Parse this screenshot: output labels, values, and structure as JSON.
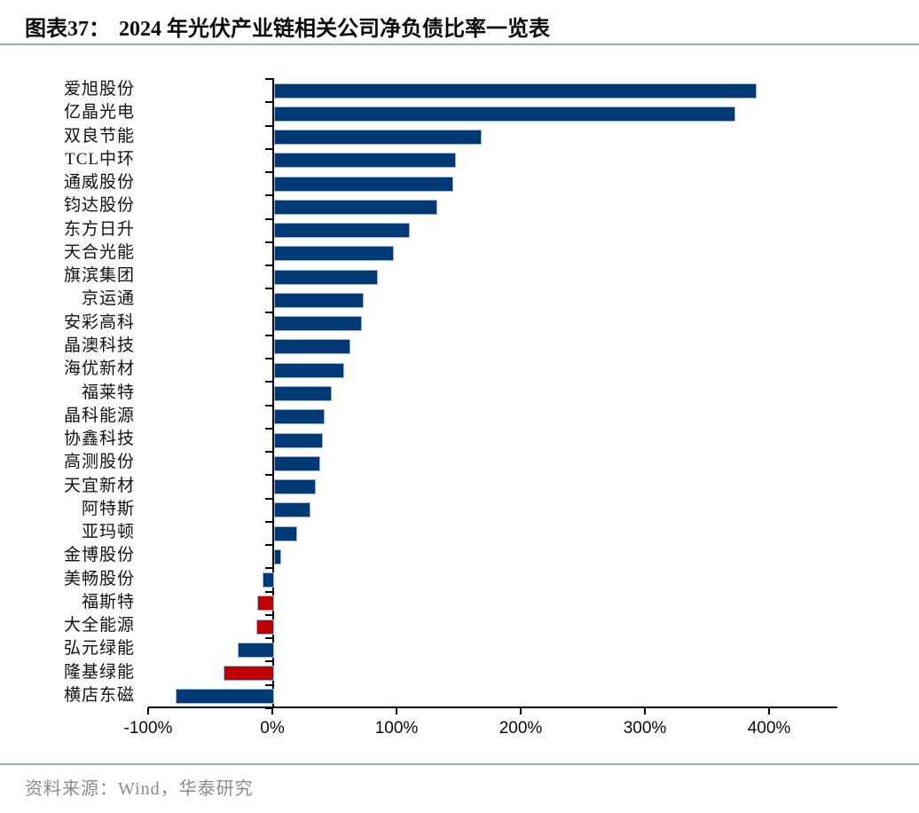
{
  "header": {
    "fig_label": "图表37：",
    "title": "2024 年光伏产业链相关公司净负债比率一览表"
  },
  "source": {
    "text": "资料来源：Wind，华泰研究"
  },
  "colors": {
    "bar_blue": "#003a76",
    "bar_red": "#c00000",
    "bar_border": "#9fb6d2",
    "divider": "#93acc5",
    "axis": "#000000",
    "source_text": "#8a8a8a"
  },
  "chart_data": {
    "type": "bar",
    "orientation": "horizontal",
    "title": "2024 年光伏产业链相关公司净负债比率一览表",
    "value_unit": "%",
    "xlim": [
      -100,
      455
    ],
    "x_tick_values": [
      -100,
      0,
      100,
      200,
      300,
      400
    ],
    "x_tick_labels": [
      "-100%",
      "0%",
      "100%",
      "200%",
      "300%",
      "400%"
    ],
    "grid": false,
    "legend": "none",
    "categories": [
      "爱旭股份",
      "亿晶光电",
      "双良节能",
      "TCL中环",
      "通威股份",
      "钧达股份",
      "东方日升",
      "天合光能",
      "旗滨集团",
      "京运通",
      "安彩高科",
      "晶澳科技",
      "海优新材",
      "福莱特",
      "晶科能源",
      "协鑫科技",
      "高测股份",
      "天宜新材",
      "阿特斯",
      "亚玛顿",
      "金博股份",
      "美畅股份",
      "福斯特",
      "大全能源",
      "弘元绿能",
      "隆基绿能",
      "横店东磁"
    ],
    "values": [
      387,
      370,
      166,
      145,
      143,
      130,
      108,
      95,
      82,
      71,
      69,
      60,
      55,
      45,
      39,
      38,
      36,
      32,
      28,
      17,
      4,
      -8,
      -12,
      -13,
      -28,
      -39,
      -78
    ],
    "bar_colors": [
      "#003a76",
      "#003a76",
      "#003a76",
      "#003a76",
      "#003a76",
      "#003a76",
      "#003a76",
      "#003a76",
      "#003a76",
      "#003a76",
      "#003a76",
      "#003a76",
      "#003a76",
      "#003a76",
      "#003a76",
      "#003a76",
      "#003a76",
      "#003a76",
      "#003a76",
      "#003a76",
      "#003a76",
      "#003a76",
      "#c00000",
      "#c00000",
      "#003a76",
      "#c00000",
      "#003a76"
    ]
  }
}
